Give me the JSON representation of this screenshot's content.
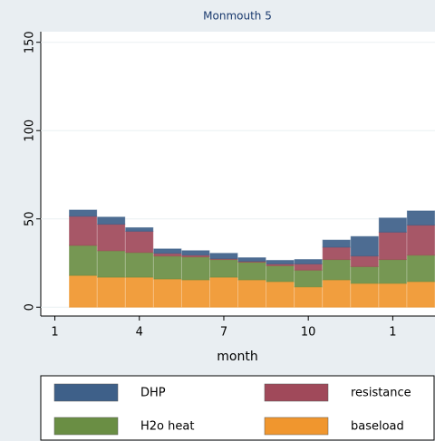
{
  "chart_data": {
    "type": "stacked_bar",
    "title": "Monmouth 5",
    "x_label": "month",
    "x": [
      2,
      3,
      4,
      5,
      6,
      7,
      8,
      9,
      10,
      11,
      12,
      13,
      14
    ],
    "series": [
      {
        "name": "baseload",
        "color": "#f0962e",
        "values": [
          18,
          17,
          17,
          16,
          15.5,
          17,
          15.5,
          14.5,
          11.5,
          15.5,
          13.5,
          13.5,
          14.5
        ]
      },
      {
        "name": "H2o heat",
        "color": "#6a8e44",
        "values": [
          17,
          15,
          14,
          13,
          13,
          10,
          10,
          9,
          9.5,
          11.5,
          9.5,
          13.5,
          15
        ]
      },
      {
        "name": "resistance",
        "color": "#a0495a",
        "values": [
          16.5,
          15,
          12,
          1.5,
          1,
          0.5,
          0.5,
          1,
          3.5,
          7,
          6,
          15.5,
          17
        ]
      },
      {
        "name": "DHP",
        "color": "#3e6089",
        "values": [
          3.5,
          4,
          2,
          2.5,
          2.5,
          3,
          2,
          2,
          2.5,
          4,
          11,
          8,
          8
        ]
      }
    ],
    "xlim": [
      0.5,
      14.5
    ],
    "xticks": [
      1,
      4,
      7,
      10,
      {
        "value": 13,
        "label": "1"
      }
    ],
    "ylim": [
      -5,
      156
    ],
    "yticks": [
      0,
      50,
      100,
      150
    ],
    "grid": true,
    "legend_position": "bottom"
  }
}
